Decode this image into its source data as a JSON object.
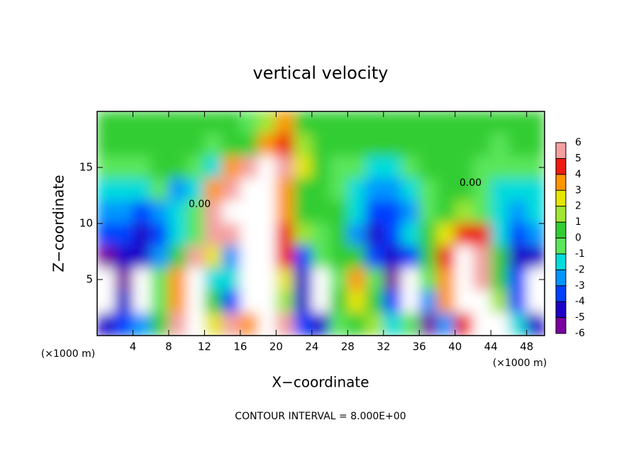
{
  "chart_data": {
    "type": "contour",
    "title": "vertical velocity",
    "xlabel": "X−coordinate",
    "ylabel": "Z−coordinate",
    "x_unit": "(×1000 m)",
    "footer": "CONTOUR INTERVAL = 8.000E+00",
    "contour_label": "0.00",
    "xlim": [
      0,
      50
    ],
    "xticks": [
      4,
      8,
      12,
      16,
      20,
      24,
      28,
      32,
      36,
      40,
      44,
      48
    ],
    "ylim": [
      0,
      20
    ],
    "yticks": [
      5,
      10,
      15
    ],
    "clim": [
      -6,
      6
    ],
    "cticks": [
      6,
      5,
      4,
      3,
      2,
      1,
      0,
      -1,
      -2,
      -3,
      -4,
      -5,
      -6
    ],
    "colors": [
      "#7a00a0",
      "#1e00c8",
      "#0040ff",
      "#0096ff",
      "#00dcdc",
      "#5ae65a",
      "#32cd32",
      "#a0e632",
      "#e6e600",
      "#ff9600",
      "#ee1a10",
      "#f4a0a0"
    ],
    "x": [
      1,
      3,
      5,
      7,
      9,
      11,
      13,
      15,
      17,
      19,
      21,
      23,
      25,
      27,
      29,
      31,
      33,
      35,
      37,
      39,
      41,
      43,
      45,
      47,
      49
    ],
    "z": [
      19,
      17,
      15,
      13,
      11,
      9,
      7,
      5,
      3,
      1
    ],
    "values": [
      [
        0,
        0,
        0,
        0,
        0,
        0,
        0,
        0,
        -1,
        1,
        3,
        0,
        0,
        0,
        0,
        0,
        0,
        0,
        0,
        0,
        0,
        0,
        0,
        0,
        0
      ],
      [
        0,
        0,
        0,
        0,
        0,
        0,
        -1,
        0,
        0,
        3,
        4,
        1,
        0,
        0,
        0,
        0,
        0,
        0,
        0,
        0,
        0,
        0,
        -1,
        0,
        0
      ],
      [
        -1,
        -1,
        -1,
        0,
        0,
        -1,
        -2,
        3,
        5,
        8,
        5,
        2,
        0,
        -1,
        -1,
        -2,
        -2,
        -1,
        0,
        0,
        0,
        -1,
        -1,
        -1,
        -1
      ],
      [
        -2,
        -2,
        -2,
        -1,
        -3,
        -2,
        3,
        6,
        8,
        8,
        3,
        0,
        0,
        -1,
        -2,
        -3,
        -3,
        -2,
        -1,
        0,
        0,
        -1,
        -2,
        -2,
        -2
      ],
      [
        -3,
        -3,
        -4,
        -3,
        -2,
        -1,
        5,
        8,
        8,
        8,
        3,
        0,
        0,
        0,
        -2,
        -4,
        -4,
        -3,
        -1,
        0,
        1,
        -1,
        -2,
        -3,
        -2
      ],
      [
        -4,
        -4,
        -5,
        -4,
        -2,
        -1,
        5,
        6,
        7,
        8,
        4,
        1,
        -1,
        0,
        -3,
        -5,
        -4,
        -2,
        0,
        2,
        4,
        4,
        -2,
        -4,
        -3
      ],
      [
        -6,
        -5,
        -5,
        -3,
        0,
        5,
        2,
        -3,
        8,
        8,
        4,
        -4,
        -1,
        0,
        0,
        -4,
        -5,
        -4,
        0,
        4,
        8,
        5,
        0,
        -5,
        -5
      ],
      [
        -7,
        -6,
        -7,
        -1,
        3,
        8,
        -2,
        -2,
        8,
        8,
        2,
        -5,
        -7,
        -1,
        3,
        -1,
        -6,
        -7,
        -1,
        3,
        8,
        6,
        0,
        -4,
        -7
      ],
      [
        -7,
        -5,
        -7,
        -1,
        3,
        8,
        0,
        -4,
        8,
        8,
        1,
        -5,
        -7,
        0,
        2,
        0,
        -4,
        -7,
        -3,
        3,
        8,
        8,
        1,
        -4,
        -7
      ],
      [
        -5,
        -4,
        -3,
        0,
        5,
        8,
        2,
        6,
        3,
        8,
        6,
        -4,
        -5,
        -1,
        0,
        1,
        -2,
        -1,
        -6,
        -3,
        4,
        8,
        8,
        -2,
        -5
      ]
    ]
  }
}
